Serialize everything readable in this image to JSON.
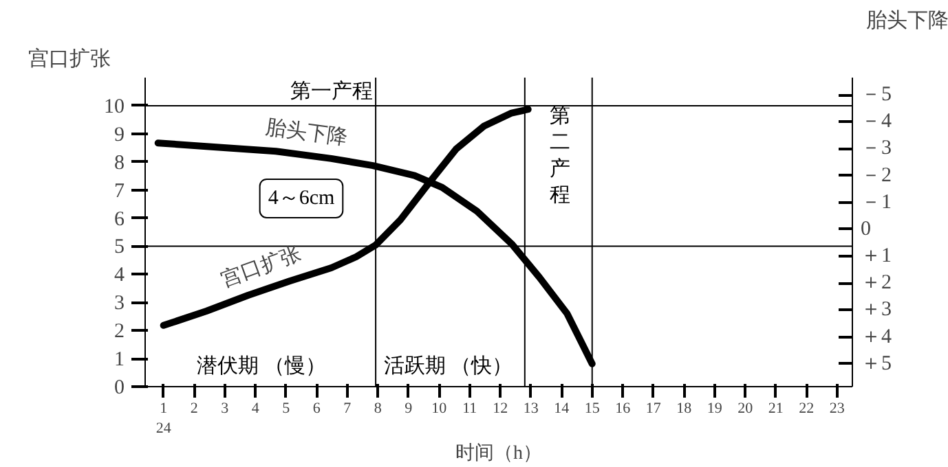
{
  "chart_data": {
    "type": "line",
    "xlabel": "时间（h）",
    "ylabel": "宫口扩张",
    "y2label": "胎头下降",
    "xlim": [
      0.4,
      23.5
    ],
    "xticks": [
      {
        "value": 1,
        "label": "1\n24"
      },
      2,
      3,
      4,
      5,
      6,
      7,
      8,
      9,
      10,
      11,
      12,
      13,
      14,
      15,
      16,
      17,
      18,
      19,
      20,
      21,
      22,
      23
    ],
    "ylim": [
      0,
      11
    ],
    "yticks": [
      0,
      1,
      2,
      3,
      4,
      5,
      6,
      7,
      8,
      9,
      10
    ],
    "y2lim": [
      5.85,
      -5.64
    ],
    "y2ticks": [
      {
        "value": -5,
        "label": "－5"
      },
      {
        "value": -4,
        "label": "－4"
      },
      {
        "value": -3,
        "label": "－3"
      },
      {
        "value": -2,
        "label": "－2"
      },
      {
        "value": -1,
        "label": "－1"
      },
      0,
      {
        "value": 1,
        "label": "＋1"
      },
      {
        "value": 2,
        "label": "＋2"
      },
      {
        "value": 3,
        "label": "＋3"
      },
      {
        "value": 4,
        "label": "＋4"
      },
      {
        "value": 5,
        "label": "＋5"
      }
    ],
    "series": [
      {
        "name": "宫口扩张",
        "color": "#000000",
        "x": [
          1.0,
          2.4,
          3.76,
          5.12,
          6.48,
          7.29,
          7.93,
          8.74,
          9.65,
          10.56,
          11.46,
          12.37,
          12.91
        ],
        "values": [
          2.18,
          2.69,
          3.25,
          3.76,
          4.23,
          4.62,
          5.04,
          5.94,
          7.22,
          8.46,
          9.27,
          9.74,
          9.87
        ]
      },
      {
        "name": "胎头下降",
        "color": "#000000",
        "axis": "y2",
        "x": [
          0.82,
          2.4,
          4.67,
          6.48,
          7.84,
          9.2,
          10.1,
          11.24,
          12.37,
          13.28,
          14.18,
          15.0
        ],
        "values": [
          -3.21,
          -3.08,
          -2.9,
          -2.63,
          -2.37,
          -2.0,
          -1.56,
          -0.67,
          0.54,
          1.79,
          3.13,
          5.0
        ]
      }
    ],
    "ref_lines": [
      {
        "axis": "x",
        "value": 7.93
      },
      {
        "axis": "x",
        "value": 12.8
      },
      {
        "axis": "x",
        "value": 15
      },
      {
        "axis": "y",
        "value": 5
      },
      {
        "axis": "y",
        "value": 10
      }
    ],
    "annotations": [
      "第一产程",
      "第二产程",
      "潜伏期 （慢）",
      "活跃期 （快）",
      "4～6cm"
    ]
  }
}
